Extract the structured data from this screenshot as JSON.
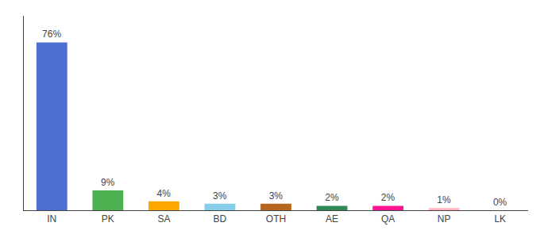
{
  "chart_data": {
    "type": "bar",
    "categories": [
      "IN",
      "PK",
      "SA",
      "BD",
      "OTH",
      "AE",
      "QA",
      "NP",
      "LK"
    ],
    "values": [
      76,
      9,
      4,
      3,
      3,
      2,
      2,
      1,
      0
    ],
    "value_labels": [
      "76%",
      "9%",
      "4%",
      "3%",
      "3%",
      "2%",
      "2%",
      "1%",
      "0%"
    ],
    "colors": [
      "#4d6fd4",
      "#4CAF50",
      "#FFA500",
      "#87CEEB",
      "#B5651D",
      "#2E8B57",
      "#FF1493",
      "#FFB6C1",
      "#E0E0E0"
    ],
    "ylim": [
      0,
      88
    ],
    "grid": false,
    "data_labels": true,
    "tick_labels": "x"
  }
}
